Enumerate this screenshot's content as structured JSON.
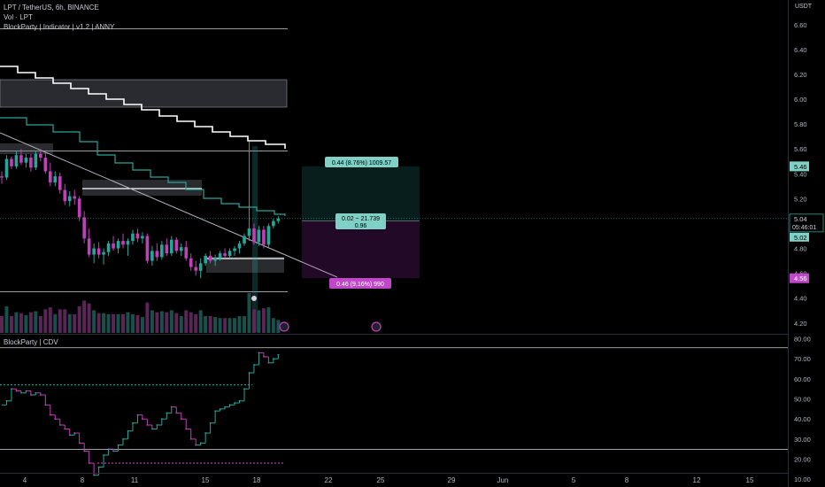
{
  "header": {
    "symbol_line": "LPT / TetherUS, 6h, BINANCE",
    "vol_line": "Vol · LPT",
    "indicator_line": "BlockParty | Indicator | v1.2 | ANNY",
    "sub_title": "BlockParty | CDV",
    "currency": "USDT"
  },
  "chart_data": [
    {
      "type": "candlestick",
      "title": "",
      "y_ticks": [
        "6.60",
        "6.40",
        "6.20",
        "6.00",
        "5.80",
        "5.60",
        "5.40",
        "5.20",
        "5.00",
        "4.80",
        "4.60",
        "4.40",
        "4.20"
      ],
      "y_range": [
        4.12,
        6.67
      ],
      "x_ticks": [
        "4",
        "8",
        "11",
        "15",
        "18",
        "22",
        "25",
        "29",
        "Jun",
        "5",
        "8",
        "12",
        "15"
      ],
      "price_labels": {
        "target": "5.46",
        "current": "5.04",
        "countdown": "05:46:01",
        "open": "5.02",
        "stop": "4.56"
      },
      "position_tool": {
        "profit_label": "0.44 (8.76%) 1009.57",
        "ratio_label_1": "0.02 ~ 21.739",
        "ratio_label_2": "0.96",
        "loss_label": "0.46 (9.16%) 990",
        "entry": 5.02,
        "target": 5.46,
        "stop": 4.56
      },
      "candles": [
        [
          5.38,
          5.42,
          5.32,
          5.37
        ],
        [
          5.37,
          5.55,
          5.35,
          5.52
        ],
        [
          5.52,
          5.54,
          5.44,
          5.46
        ],
        [
          5.46,
          5.58,
          5.44,
          5.55
        ],
        [
          5.55,
          5.6,
          5.47,
          5.49
        ],
        [
          5.49,
          5.56,
          5.45,
          5.53
        ],
        [
          5.53,
          5.56,
          5.42,
          5.45
        ],
        [
          5.45,
          5.58,
          5.43,
          5.56
        ],
        [
          5.56,
          5.6,
          5.5,
          5.53
        ],
        [
          5.53,
          5.57,
          5.4,
          5.42
        ],
        [
          5.42,
          5.49,
          5.3,
          5.33
        ],
        [
          5.33,
          5.42,
          5.3,
          5.38
        ],
        [
          5.38,
          5.41,
          5.24,
          5.27
        ],
        [
          5.27,
          5.32,
          5.15,
          5.18
        ],
        [
          5.18,
          5.26,
          5.14,
          5.22
        ],
        [
          5.22,
          5.27,
          5.15,
          5.2
        ],
        [
          5.2,
          5.22,
          5.02,
          5.05
        ],
        [
          5.05,
          5.1,
          4.84,
          4.88
        ],
        [
          4.88,
          4.96,
          4.73,
          4.75
        ],
        [
          4.75,
          4.84,
          4.68,
          4.8
        ],
        [
          4.8,
          4.85,
          4.72,
          4.75
        ],
        [
          4.75,
          4.8,
          4.67,
          4.77
        ],
        [
          4.77,
          4.86,
          4.74,
          4.84
        ],
        [
          4.84,
          4.9,
          4.78,
          4.8
        ],
        [
          4.8,
          4.88,
          4.76,
          4.86
        ],
        [
          4.86,
          4.92,
          4.8,
          4.83
        ],
        [
          4.83,
          4.88,
          4.74,
          4.86
        ],
        [
          4.86,
          4.95,
          4.83,
          4.92
        ],
        [
          4.92,
          4.96,
          4.85,
          4.88
        ],
        [
          4.88,
          4.93,
          4.84,
          4.9
        ],
        [
          4.9,
          4.92,
          4.68,
          4.7
        ],
        [
          4.7,
          4.82,
          4.66,
          4.78
        ],
        [
          4.78,
          4.84,
          4.7,
          4.73
        ],
        [
          4.73,
          4.86,
          4.71,
          4.83
        ],
        [
          4.83,
          4.88,
          4.74,
          4.76
        ],
        [
          4.76,
          4.9,
          4.74,
          4.87
        ],
        [
          4.87,
          4.89,
          4.76,
          4.78
        ],
        [
          4.78,
          4.84,
          4.74,
          4.81
        ],
        [
          4.81,
          4.86,
          4.7,
          4.72
        ],
        [
          4.72,
          4.76,
          4.62,
          4.65
        ],
        [
          4.65,
          4.7,
          4.58,
          4.62
        ],
        [
          4.62,
          4.72,
          4.56,
          4.68
        ],
        [
          4.68,
          4.76,
          4.66,
          4.74
        ],
        [
          4.74,
          4.78,
          4.68,
          4.7
        ],
        [
          4.7,
          4.75,
          4.66,
          4.72
        ],
        [
          4.72,
          4.78,
          4.7,
          4.76
        ],
        [
          4.76,
          4.8,
          4.72,
          4.74
        ],
        [
          4.74,
          4.8,
          4.72,
          4.78
        ],
        [
          4.78,
          4.82,
          4.74,
          4.8
        ],
        [
          4.8,
          4.86,
          4.76,
          4.84
        ],
        [
          4.84,
          4.92,
          4.82,
          4.9
        ],
        [
          4.9,
          5.66,
          4.86,
          4.96
        ],
        [
          4.96,
          5.0,
          4.83,
          4.85
        ],
        [
          4.85,
          4.98,
          4.82,
          4.95
        ],
        [
          4.95,
          4.98,
          4.8,
          4.83
        ],
        [
          4.83,
          5.0,
          4.81,
          4.98
        ],
        [
          4.98,
          5.04,
          4.96,
          5.02
        ],
        [
          5.02,
          5.06,
          5.0,
          5.04
        ]
      ]
    },
    {
      "type": "line",
      "title": "BlockParty | CDV",
      "y_ticks": [
        "80.00",
        "70.00",
        "60.00",
        "50.00",
        "40.00",
        "30.00",
        "20.00",
        "10.00"
      ],
      "y_range": [
        7,
        82
      ],
      "levels": [
        75.5,
        24.8
      ],
      "dotted_levels": [
        {
          "value": 57,
          "color": "#26a69a"
        },
        {
          "value": 18,
          "color": "#c23fbb"
        }
      ],
      "values": [
        47,
        49,
        55,
        54,
        53,
        54,
        52,
        53,
        52,
        47,
        42,
        40,
        37,
        35,
        32,
        33,
        28,
        24,
        18,
        12,
        16,
        22,
        25,
        24,
        27,
        30,
        34,
        38,
        42,
        40,
        37,
        35,
        37,
        40,
        43,
        46,
        43,
        40,
        35,
        30,
        27,
        28,
        33,
        38,
        44,
        45,
        46,
        47,
        48,
        49,
        55,
        63,
        67,
        73,
        71,
        68,
        70,
        72
      ]
    }
  ]
}
